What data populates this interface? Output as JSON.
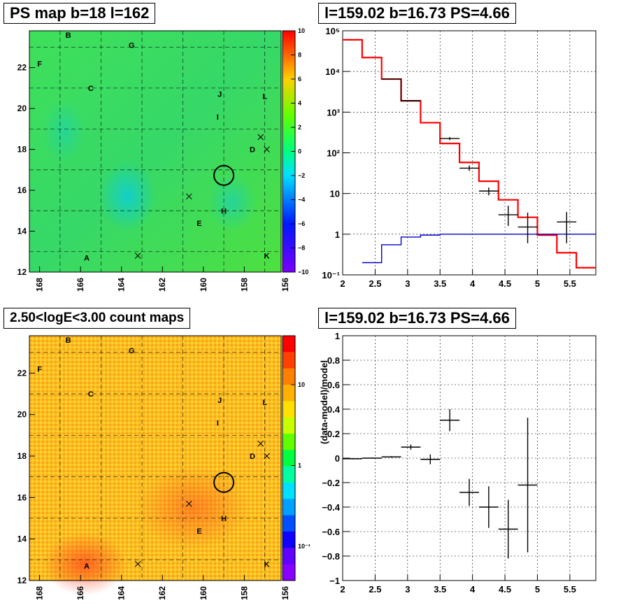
{
  "panels": {
    "tl_title": "PS map b=18 l=162",
    "tr_title": "l=159.02 b=16.73 PS=4.66",
    "bl_title": "2.50<logE<3.00 count maps",
    "br_title": "l=159.02 b=16.73 PS=4.66"
  },
  "chart_data": [
    {
      "type": "heatmap",
      "title": "PS map b=18 l=162",
      "x_ticks": [
        "168",
        "166",
        "164",
        "162",
        "160",
        "158",
        "156"
      ],
      "y_ticks": [
        "12",
        "14",
        "16",
        "18",
        "20",
        "22"
      ],
      "xlim": [
        168.5,
        156.2
      ],
      "ylim": [
        12,
        23.8
      ],
      "colorbar": {
        "ticks": [
          "10",
          "8",
          "6",
          "4",
          "2",
          "0",
          "−2",
          "−4",
          "−6",
          "−8",
          "−10"
        ],
        "range": [
          -10,
          10
        ]
      },
      "labels": [
        "B",
        "G",
        "F",
        "C",
        "J",
        "L",
        "I",
        "D",
        "H",
        "E",
        "A",
        "K"
      ],
      "marker_circle": {
        "l": 159.0,
        "b": 16.73
      }
    },
    {
      "type": "line",
      "title": "l=159.02 b=16.73 PS=4.66",
      "x_ticks": [
        "2",
        "2.5",
        "3",
        "3.5",
        "4",
        "4.5",
        "5",
        "5.5"
      ],
      "y_ticks": [
        "10⁻¹",
        "1",
        "10",
        "10²",
        "10³",
        "10⁴",
        "10⁵"
      ],
      "yscale": "log",
      "xlim": [
        2,
        5.9
      ],
      "ylim": [
        0.1,
        100000
      ],
      "series": [
        {
          "color": "#ff0000",
          "edges": [
            2.0,
            2.3,
            2.6,
            2.9,
            3.2,
            3.5,
            3.8,
            4.1,
            4.4,
            4.7,
            5.0,
            5.3,
            5.6,
            5.9
          ],
          "values": [
            60000,
            22000,
            6500,
            1900,
            550,
            170,
            58,
            20,
            7,
            2.6,
            0.95,
            0.35,
            0.15
          ]
        },
        {
          "color": "#0000cc",
          "edges": [
            2.3,
            2.6,
            2.9,
            3.2,
            3.5,
            5.9
          ],
          "values": [
            0.2,
            0.55,
            0.85,
            0.95,
            1.0
          ]
        },
        {
          "color": "#000000",
          "edges": [
            2.6,
            2.9,
            3.2
          ],
          "values": [
            6500,
            1900
          ]
        }
      ],
      "points": [
        {
          "x": 3.05,
          "y": 1900,
          "xerr": 0.15,
          "yerr": [
            1850,
            1950
          ]
        },
        {
          "x": 3.65,
          "y": 225,
          "xerr": 0.15,
          "yerr": [
            205,
            245
          ]
        },
        {
          "x": 3.95,
          "y": 42,
          "xerr": 0.15,
          "yerr": [
            36,
            49
          ]
        },
        {
          "x": 4.25,
          "y": 11.5,
          "xerr": 0.15,
          "yerr": [
            9,
            14
          ]
        },
        {
          "x": 4.55,
          "y": 3.0,
          "xerr": 0.15,
          "yerr": [
            1.6,
            5.0
          ]
        },
        {
          "x": 4.85,
          "y": 1.5,
          "xerr": 0.15,
          "yerr": [
            0.6,
            3.4
          ]
        },
        {
          "x": 5.45,
          "y": 2.0,
          "xerr": 0.15,
          "yerr": [
            0.6,
            3.5
          ]
        }
      ]
    },
    {
      "type": "heatmap",
      "title": "2.50<logE<3.00 count maps",
      "x_ticks": [
        "168",
        "166",
        "164",
        "162",
        "160",
        "158",
        "156"
      ],
      "y_ticks": [
        "12",
        "14",
        "16",
        "18",
        "20",
        "22"
      ],
      "xlim": [
        168.5,
        156.2
      ],
      "ylim": [
        12,
        23.8
      ],
      "colorbar": {
        "ticks": [
          "10",
          "1",
          "10⁻¹"
        ],
        "scale": "log"
      },
      "labels": [
        "B",
        "G",
        "F",
        "C",
        "J",
        "L",
        "I",
        "D",
        "H",
        "E",
        "A",
        "K"
      ],
      "marker_circle": {
        "l": 159.0,
        "b": 16.73
      }
    },
    {
      "type": "scatter",
      "title": "l=159.02 b=16.73 PS=4.66",
      "ylabel": "(data-model)/model",
      "x_ticks": [
        "2",
        "2.5",
        "3",
        "3.5",
        "4",
        "4.5",
        "5",
        "5.5"
      ],
      "y_ticks": [
        "1",
        "0.8",
        "0.6",
        "0.4",
        "0.2",
        "0",
        "−0.2",
        "−0.4",
        "−0.6",
        "−0.8",
        "−1"
      ],
      "xlim": [
        2,
        5.9
      ],
      "ylim": [
        -1,
        1
      ],
      "points": [
        {
          "x": 2.15,
          "y": -0.005,
          "xerr": 0.15,
          "yerr": 0.005
        },
        {
          "x": 2.45,
          "y": 0.0,
          "xerr": 0.15,
          "yerr": 0.004
        },
        {
          "x": 2.75,
          "y": 0.01,
          "xerr": 0.15,
          "yerr": 0.006
        },
        {
          "x": 3.05,
          "y": 0.09,
          "xerr": 0.15,
          "yerr": 0.02
        },
        {
          "x": 3.35,
          "y": -0.01,
          "xerr": 0.15,
          "yerr": 0.04
        },
        {
          "x": 3.65,
          "y": 0.31,
          "xerr": 0.15,
          "yerr": 0.09
        },
        {
          "x": 3.95,
          "y": -0.28,
          "xerr": 0.15,
          "yerr": 0.11
        },
        {
          "x": 4.25,
          "y": -0.4,
          "xerr": 0.15,
          "yerr": 0.17
        },
        {
          "x": 4.55,
          "y": -0.58,
          "xerr": 0.15,
          "yerr": 0.24
        },
        {
          "x": 4.85,
          "y": -0.22,
          "xerr": 0.15,
          "yerr": 0.55
        }
      ]
    }
  ]
}
